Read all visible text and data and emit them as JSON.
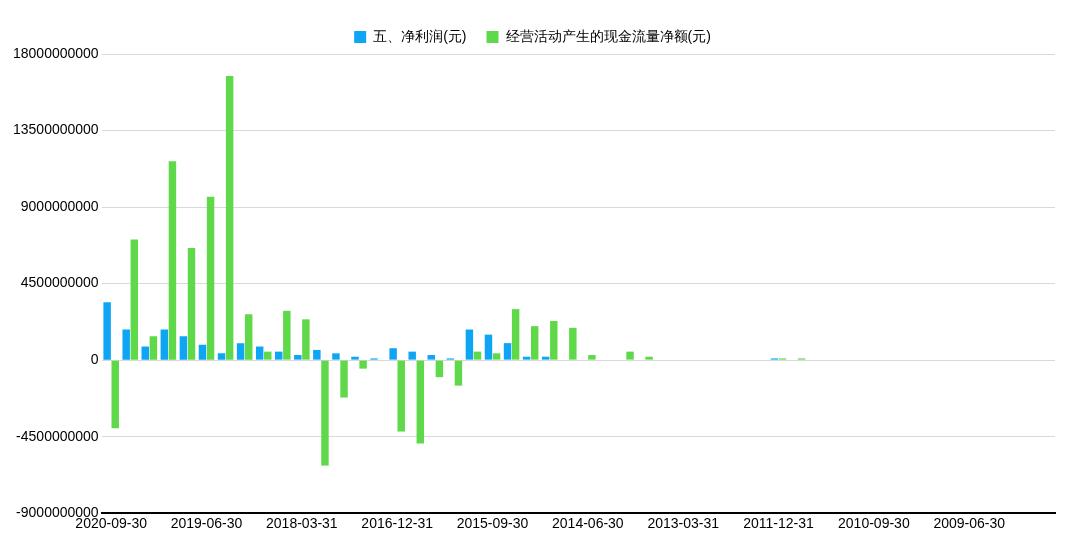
{
  "chart_data": {
    "type": "bar",
    "categories": [
      "2020-09-30",
      null,
      null,
      null,
      null,
      "2019-06-30",
      null,
      null,
      null,
      null,
      "2018-03-31",
      null,
      null,
      null,
      null,
      "2016-12-31",
      null,
      null,
      null,
      null,
      "2015-09-30",
      null,
      null,
      null,
      null,
      "2014-06-30",
      null,
      null,
      null,
      null,
      "2013-03-31",
      null,
      null,
      null,
      null,
      "2011-12-31",
      null,
      null,
      null,
      null,
      "2010-09-30",
      null,
      null,
      null,
      null,
      "2009-06-30",
      null,
      null,
      null,
      null
    ],
    "series": [
      {
        "name": "五、净利润(元)",
        "color": "#0ea5f5",
        "values": [
          3400000000,
          1800000000,
          800000000,
          1800000000,
          1400000000,
          900000000,
          400000000,
          1000000000,
          800000000,
          500000000,
          300000000,
          600000000,
          400000000,
          200000000,
          100000000,
          700000000,
          500000000,
          300000000,
          100000000,
          1800000000,
          1500000000,
          1000000000,
          200000000,
          200000000,
          null,
          null,
          null,
          null,
          null,
          null,
          null,
          null,
          null,
          null,
          null,
          100000000,
          null,
          null,
          null,
          null,
          null,
          null,
          null,
          null,
          null,
          null,
          null,
          null,
          null,
          null
        ]
      },
      {
        "name": "经营活动产生的现金流量净额(元)",
        "color": "#5fd94a",
        "values": [
          -4000000000,
          7100000000,
          1400000000,
          11700000000,
          6600000000,
          9600000000,
          16700000000,
          2700000000,
          500000000,
          2900000000,
          2400000000,
          -6200000000,
          -2200000000,
          -500000000,
          null,
          -4200000000,
          -4900000000,
          -1000000000,
          -1500000000,
          500000000,
          400000000,
          3000000000,
          2000000000,
          2300000000,
          1900000000,
          300000000,
          null,
          500000000,
          200000000,
          null,
          null,
          null,
          null,
          null,
          null,
          100000000,
          100000000,
          null,
          null,
          null,
          null,
          null,
          null,
          null,
          null,
          null,
          null,
          null,
          null,
          null
        ]
      }
    ],
    "ylim": [
      -9000000000,
      18000000000
    ],
    "yticks": [
      -9000000000,
      -4500000000,
      0,
      4500000000,
      9000000000,
      13500000000,
      18000000000
    ],
    "grid": "y",
    "legend": "top"
  }
}
